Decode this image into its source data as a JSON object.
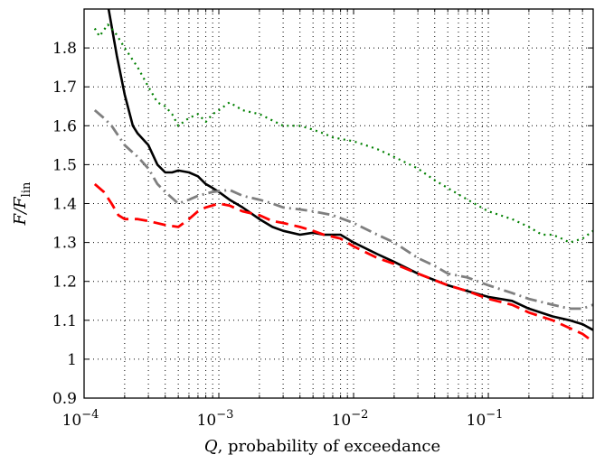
{
  "chart_data": {
    "type": "line",
    "title": "",
    "xlabel": "Q,  probability of exceedance",
    "ylabel": "F/F_lin",
    "xscale": "log",
    "xlim": [
      0.0001,
      0.6
    ],
    "ylim": [
      0.9,
      1.9
    ],
    "grid": true,
    "legend": "none",
    "y_ticks": [
      "0.9",
      "1",
      "1.1",
      "1.2",
      "1.3",
      "1.4",
      "1.5",
      "1.6",
      "1.7",
      "1.8"
    ],
    "x_ticks": [
      {
        "base": "10",
        "exp": "−4"
      },
      {
        "base": "10",
        "exp": "−3"
      },
      {
        "base": "10",
        "exp": "−2"
      },
      {
        "base": "10",
        "exp": "−1"
      }
    ],
    "series": [
      {
        "color": "#000000",
        "dash": "solid",
        "points": [
          [
            0.000152,
            1.9
          ],
          [
            0.000175,
            1.78
          ],
          [
            0.0002,
            1.68
          ],
          [
            0.00023,
            1.6
          ],
          [
            0.00025,
            1.58
          ],
          [
            0.0003,
            1.55
          ],
          [
            0.00035,
            1.5
          ],
          [
            0.0004,
            1.48
          ],
          [
            0.00045,
            1.48
          ],
          [
            0.0005,
            1.485
          ],
          [
            0.0006,
            1.48
          ],
          [
            0.0007,
            1.47
          ],
          [
            0.0008,
            1.45
          ],
          [
            0.0009,
            1.44
          ],
          [
            0.001,
            1.43
          ],
          [
            0.0012,
            1.41
          ],
          [
            0.0015,
            1.39
          ],
          [
            0.002,
            1.36
          ],
          [
            0.0025,
            1.34
          ],
          [
            0.003,
            1.33
          ],
          [
            0.004,
            1.32
          ],
          [
            0.005,
            1.325
          ],
          [
            0.006,
            1.32
          ],
          [
            0.008,
            1.32
          ],
          [
            0.01,
            1.3
          ],
          [
            0.015,
            1.27
          ],
          [
            0.02,
            1.25
          ],
          [
            0.03,
            1.22
          ],
          [
            0.05,
            1.19
          ],
          [
            0.07,
            1.175
          ],
          [
            0.1,
            1.16
          ],
          [
            0.15,
            1.15
          ],
          [
            0.2,
            1.13
          ],
          [
            0.3,
            1.11
          ],
          [
            0.4,
            1.1
          ],
          [
            0.5,
            1.09
          ],
          [
            0.6,
            1.075
          ]
        ]
      },
      {
        "color": "#7f7f7f",
        "dash": "dashdot",
        "points": [
          [
            0.00012,
            1.64
          ],
          [
            0.00014,
            1.62
          ],
          [
            0.00016,
            1.6
          ],
          [
            0.0002,
            1.55
          ],
          [
            0.00025,
            1.52
          ],
          [
            0.0003,
            1.49
          ],
          [
            0.00035,
            1.45
          ],
          [
            0.0004,
            1.43
          ],
          [
            0.0005,
            1.4
          ],
          [
            0.0006,
            1.41
          ],
          [
            0.0007,
            1.42
          ],
          [
            0.0009,
            1.43
          ],
          [
            0.0012,
            1.435
          ],
          [
            0.0015,
            1.42
          ],
          [
            0.002,
            1.41
          ],
          [
            0.0025,
            1.4
          ],
          [
            0.003,
            1.39
          ],
          [
            0.004,
            1.385
          ],
          [
            0.005,
            1.38
          ],
          [
            0.007,
            1.37
          ],
          [
            0.01,
            1.35
          ],
          [
            0.015,
            1.32
          ],
          [
            0.02,
            1.3
          ],
          [
            0.03,
            1.26
          ],
          [
            0.04,
            1.24
          ],
          [
            0.05,
            1.22
          ],
          [
            0.07,
            1.21
          ],
          [
            0.1,
            1.19
          ],
          [
            0.15,
            1.17
          ],
          [
            0.2,
            1.155
          ],
          [
            0.3,
            1.14
          ],
          [
            0.4,
            1.13
          ],
          [
            0.5,
            1.13
          ],
          [
            0.6,
            1.14
          ]
        ]
      },
      {
        "color": "#ff0000",
        "dash": "dashed",
        "points": [
          [
            0.00012,
            1.45
          ],
          [
            0.00014,
            1.43
          ],
          [
            0.00016,
            1.4
          ],
          [
            0.00018,
            1.37
          ],
          [
            0.0002,
            1.36
          ],
          [
            0.00025,
            1.36
          ],
          [
            0.0003,
            1.355
          ],
          [
            0.0004,
            1.345
          ],
          [
            0.0005,
            1.34
          ],
          [
            0.0006,
            1.36
          ],
          [
            0.0007,
            1.38
          ],
          [
            0.0008,
            1.39
          ],
          [
            0.001,
            1.4
          ],
          [
            0.0012,
            1.395
          ],
          [
            0.0015,
            1.38
          ],
          [
            0.002,
            1.37
          ],
          [
            0.0025,
            1.355
          ],
          [
            0.003,
            1.35
          ],
          [
            0.004,
            1.34
          ],
          [
            0.005,
            1.33
          ],
          [
            0.006,
            1.32
          ],
          [
            0.008,
            1.31
          ],
          [
            0.01,
            1.29
          ],
          [
            0.015,
            1.26
          ],
          [
            0.02,
            1.245
          ],
          [
            0.03,
            1.22
          ],
          [
            0.05,
            1.19
          ],
          [
            0.07,
            1.175
          ],
          [
            0.1,
            1.155
          ],
          [
            0.15,
            1.14
          ],
          [
            0.2,
            1.12
          ],
          [
            0.3,
            1.1
          ],
          [
            0.4,
            1.08
          ],
          [
            0.5,
            1.065
          ],
          [
            0.6,
            1.045
          ]
        ]
      },
      {
        "color": "#008000",
        "dash": "dotted",
        "points": [
          [
            0.00012,
            1.85
          ],
          [
            0.00013,
            1.83
          ],
          [
            0.00015,
            1.86
          ],
          [
            0.00017,
            1.84
          ],
          [
            0.0002,
            1.8
          ],
          [
            0.00025,
            1.75
          ],
          [
            0.0003,
            1.7
          ],
          [
            0.00035,
            1.66
          ],
          [
            0.0004,
            1.65
          ],
          [
            0.00045,
            1.63
          ],
          [
            0.0005,
            1.6
          ],
          [
            0.0006,
            1.62
          ],
          [
            0.0007,
            1.63
          ],
          [
            0.0008,
            1.61
          ],
          [
            0.0009,
            1.63
          ],
          [
            0.001,
            1.64
          ],
          [
            0.0012,
            1.66
          ],
          [
            0.0015,
            1.64
          ],
          [
            0.002,
            1.63
          ],
          [
            0.003,
            1.6
          ],
          [
            0.004,
            1.6
          ],
          [
            0.005,
            1.59
          ],
          [
            0.006,
            1.58
          ],
          [
            0.007,
            1.57
          ],
          [
            0.01,
            1.56
          ],
          [
            0.015,
            1.54
          ],
          [
            0.02,
            1.52
          ],
          [
            0.03,
            1.49
          ],
          [
            0.04,
            1.46
          ],
          [
            0.05,
            1.44
          ],
          [
            0.07,
            1.41
          ],
          [
            0.1,
            1.38
          ],
          [
            0.15,
            1.36
          ],
          [
            0.2,
            1.34
          ],
          [
            0.25,
            1.32
          ],
          [
            0.3,
            1.32
          ],
          [
            0.35,
            1.31
          ],
          [
            0.4,
            1.3
          ],
          [
            0.5,
            1.31
          ],
          [
            0.6,
            1.33
          ]
        ]
      }
    ]
  }
}
